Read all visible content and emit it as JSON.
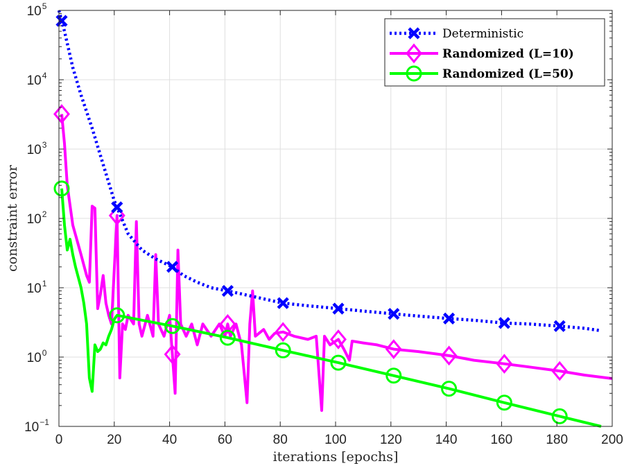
{
  "chart_data": {
    "type": "line",
    "title": "",
    "xlabel": "iterations [epochs]",
    "ylabel": "constraint error",
    "xlim": [
      0,
      200
    ],
    "ylim": [
      0.1,
      100000
    ],
    "yscale": "log",
    "x_ticks": [
      "0",
      "20",
      "40",
      "60",
      "80",
      "100",
      "120",
      "140",
      "160",
      "180",
      "200"
    ],
    "y_ticks": [
      {
        "base": "10",
        "exp": "−1"
      },
      {
        "base": "10",
        "exp": "0"
      },
      {
        "base": "10",
        "exp": "1"
      },
      {
        "base": "10",
        "exp": "2"
      },
      {
        "base": "10",
        "exp": "3"
      },
      {
        "base": "10",
        "exp": "4"
      },
      {
        "base": "10",
        "exp": "5"
      }
    ],
    "grid": true,
    "legend_position": "top-right",
    "series": [
      {
        "name": "Deterministic",
        "color": "#0000ff",
        "line_style": "dotted",
        "marker": "x",
        "markers_x": [
          1,
          21,
          41,
          61,
          81,
          101,
          121,
          141,
          161,
          181
        ],
        "points": [
          [
            0,
            100000
          ],
          [
            2,
            50000
          ],
          [
            5,
            15000
          ],
          [
            8,
            6000
          ],
          [
            12,
            2000
          ],
          [
            16,
            600
          ],
          [
            20,
            180
          ],
          [
            25,
            60
          ],
          [
            30,
            35
          ],
          [
            35,
            26
          ],
          [
            41,
            20
          ],
          [
            45,
            15
          ],
          [
            50,
            12
          ],
          [
            55,
            10
          ],
          [
            61,
            9
          ],
          [
            70,
            7.5
          ],
          [
            81,
            6
          ],
          [
            90,
            5.5
          ],
          [
            101,
            5
          ],
          [
            110,
            4.6
          ],
          [
            121,
            4.2
          ],
          [
            130,
            3.9
          ],
          [
            141,
            3.6
          ],
          [
            150,
            3.4
          ],
          [
            161,
            3.1
          ],
          [
            170,
            3.0
          ],
          [
            181,
            2.8
          ],
          [
            190,
            2.6
          ],
          [
            196,
            2.4
          ]
        ]
      },
      {
        "name": "Randomized (L=10)",
        "color": "#ff00ff",
        "line_style": "solid",
        "marker": "diamond",
        "markers_x": [
          1,
          21,
          41,
          61,
          81,
          101,
          121,
          141,
          161,
          181
        ],
        "points": [
          [
            1,
            3200
          ],
          [
            2,
            1200
          ],
          [
            3,
            300
          ],
          [
            5,
            80
          ],
          [
            8,
            30
          ],
          [
            10,
            15
          ],
          [
            11,
            12
          ],
          [
            12,
            150
          ],
          [
            13,
            140
          ],
          [
            14,
            5
          ],
          [
            15,
            8
          ],
          [
            16,
            15
          ],
          [
            17,
            6
          ],
          [
            18,
            4
          ],
          [
            19,
            3
          ],
          [
            21,
            110
          ],
          [
            22,
            0.5
          ],
          [
            23,
            3
          ],
          [
            24,
            2.5
          ],
          [
            25,
            4
          ],
          [
            27,
            3
          ],
          [
            28,
            90
          ],
          [
            29,
            3
          ],
          [
            30,
            2
          ],
          [
            32,
            4
          ],
          [
            34,
            2
          ],
          [
            35,
            30
          ],
          [
            36,
            3
          ],
          [
            38,
            2
          ],
          [
            40,
            4
          ],
          [
            42,
            0.3
          ],
          [
            43,
            35
          ],
          [
            44,
            3
          ],
          [
            46,
            2
          ],
          [
            48,
            3
          ],
          [
            50,
            1.5
          ],
          [
            52,
            3
          ],
          [
            55,
            2
          ],
          [
            58,
            3
          ],
          [
            60,
            2
          ],
          [
            61,
            3
          ],
          [
            62,
            2
          ],
          [
            64,
            3
          ],
          [
            66,
            1.5
          ],
          [
            68,
            0.22
          ],
          [
            69,
            3
          ],
          [
            70,
            9
          ],
          [
            71,
            2
          ],
          [
            74,
            2.5
          ],
          [
            76,
            1.8
          ],
          [
            78,
            2.2
          ],
          [
            81,
            2.3
          ],
          [
            85,
            2
          ],
          [
            90,
            1.8
          ],
          [
            93,
            2
          ],
          [
            95,
            0.17
          ],
          [
            96,
            2
          ],
          [
            98,
            1.5
          ],
          [
            101,
            1.8
          ],
          [
            103,
            1.3
          ],
          [
            105,
            0.9
          ],
          [
            106,
            1.7
          ],
          [
            110,
            1.6
          ],
          [
            115,
            1.5
          ],
          [
            121,
            1.3
          ],
          [
            130,
            1.2
          ],
          [
            141,
            1.05
          ],
          [
            150,
            0.9
          ],
          [
            161,
            0.8
          ],
          [
            170,
            0.72
          ],
          [
            181,
            0.63
          ],
          [
            190,
            0.55
          ],
          [
            200,
            0.49
          ]
        ]
      },
      {
        "name": "Randomized (L=50)",
        "color": "#00ff00",
        "line_style": "solid",
        "marker": "circle",
        "markers_x": [
          1,
          21,
          41,
          61,
          81,
          101,
          121,
          141,
          161,
          181
        ],
        "points": [
          [
            1,
            270
          ],
          [
            2,
            80
          ],
          [
            3,
            35
          ],
          [
            4,
            50
          ],
          [
            5,
            30
          ],
          [
            6,
            20
          ],
          [
            8,
            10
          ],
          [
            9,
            6
          ],
          [
            10,
            3
          ],
          [
            11,
            0.5
          ],
          [
            12,
            0.32
          ],
          [
            13,
            1.5
          ],
          [
            14,
            1.2
          ],
          [
            15,
            1.3
          ],
          [
            16,
            1.6
          ],
          [
            17,
            1.5
          ],
          [
            18,
            2
          ],
          [
            19,
            2.5
          ],
          [
            20,
            3.5
          ],
          [
            21,
            4
          ],
          [
            41,
            2.8
          ],
          [
            61,
            1.9
          ],
          [
            81,
            1.25
          ],
          [
            101,
            0.83
          ],
          [
            121,
            0.54
          ],
          [
            141,
            0.35
          ],
          [
            161,
            0.22
          ],
          [
            181,
            0.14
          ],
          [
            196,
            0.1
          ]
        ]
      }
    ]
  }
}
